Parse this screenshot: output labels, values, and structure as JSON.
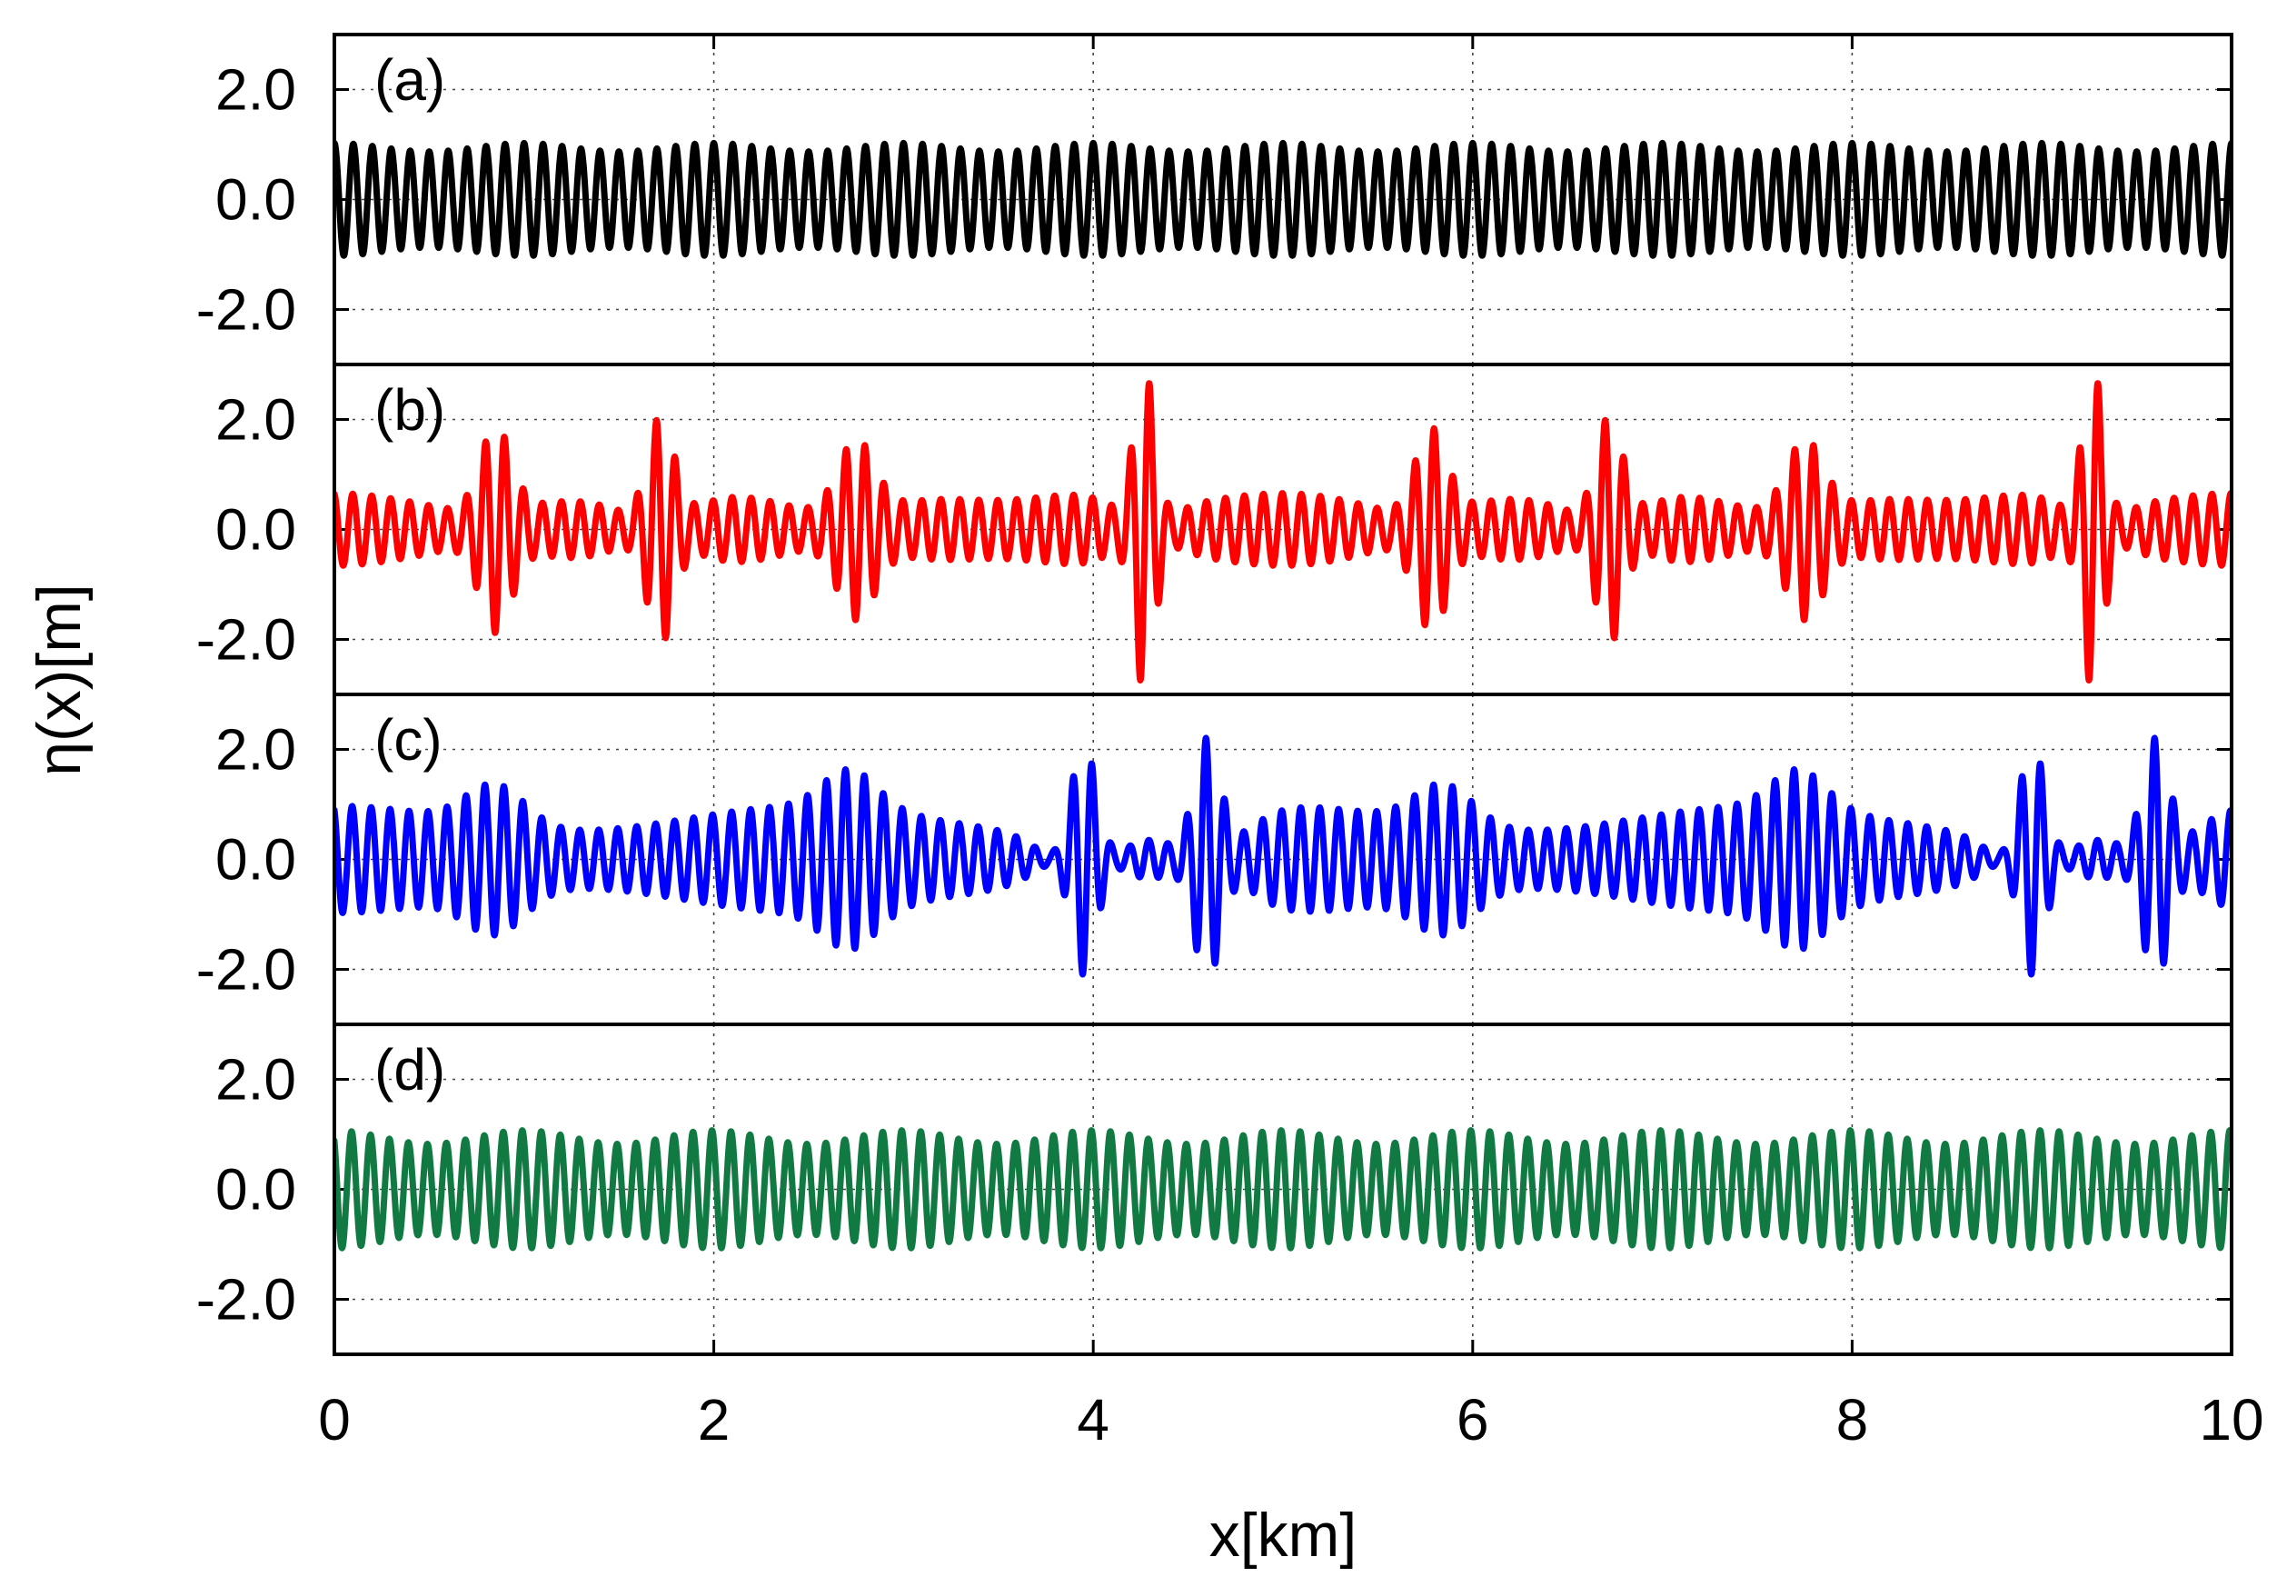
{
  "chart_data": {
    "type": "line",
    "layout": "4 stacked panels sharing x axis",
    "xlabel": "x[km]",
    "ylabel": "η(x)[m]",
    "xlim": [
      0,
      10
    ],
    "xticks": [
      0,
      2,
      4,
      6,
      8,
      10
    ],
    "xtick_labels": [
      "0",
      "2",
      "4",
      "6",
      "8",
      "10"
    ],
    "ylim": [
      -3,
      3
    ],
    "yticks": [
      2,
      0,
      -2
    ],
    "ytick_labels": [
      "2.0",
      "0.0",
      "-2.0"
    ],
    "grid": true,
    "wavenumber_cycles_per_km": 10,
    "panels": [
      {
        "label": "(a)",
        "color": "#000000",
        "description": "uniform wave train",
        "base_amplitude": 0.95,
        "modulation": {
          "amplitude": 0.08,
          "period_km": 1.0
        },
        "groups": []
      },
      {
        "label": "(b)",
        "color": "#ff0000",
        "description": "wave train with localized breather-like peaks",
        "base_amplitude": 0.6,
        "modulation": {
          "amplitude": 0.1,
          "period_km": 1.0
        },
        "groups": [
          {
            "center": 0.85,
            "peak": 1.85,
            "width": 0.12,
            "dip": 0.35
          },
          {
            "center": 1.72,
            "peak": 2.1,
            "width": 0.1,
            "dip": 0.4
          },
          {
            "center": 2.75,
            "peak": 1.65,
            "width": 0.14,
            "dip": 0.3
          },
          {
            "center": 4.27,
            "peak": 2.95,
            "width": 0.08,
            "dip": 0.45
          },
          {
            "center": 5.78,
            "peak": 1.85,
            "width": 0.12,
            "dip": 0.35
          },
          {
            "center": 6.72,
            "peak": 2.1,
            "width": 0.1,
            "dip": 0.4
          },
          {
            "center": 7.75,
            "peak": 1.65,
            "width": 0.14,
            "dip": 0.3
          },
          {
            "center": 9.27,
            "peak": 2.95,
            "width": 0.08,
            "dip": 0.45
          }
        ]
      },
      {
        "label": "(c)",
        "color": "#0000ff",
        "description": "modulated wave groups with rogue-wave peaks",
        "base_amplitude": 0.75,
        "modulation": {
          "amplitude": 0.3,
          "period_km": 2.5
        },
        "groups": [
          {
            "center": 0.85,
            "peak": 1.5,
            "width": 0.22,
            "dip": 0.0
          },
          {
            "center": 2.72,
            "peak": 1.45,
            "width": 0.2,
            "dip": 0.0
          },
          {
            "center": 3.95,
            "peak": 2.3,
            "width": 0.1,
            "dip": 0.8
          },
          {
            "center": 4.6,
            "peak": 2.1,
            "width": 0.1,
            "dip": 0.85
          },
          {
            "center": 5.85,
            "peak": 1.5,
            "width": 0.22,
            "dip": 0.0
          },
          {
            "center": 7.72,
            "peak": 1.45,
            "width": 0.2,
            "dip": 0.0
          },
          {
            "center": 8.95,
            "peak": 2.3,
            "width": 0.1,
            "dip": 0.8
          },
          {
            "center": 9.6,
            "peak": 2.1,
            "width": 0.1,
            "dip": 0.85
          }
        ]
      },
      {
        "label": "(d)",
        "color": "#117a43",
        "description": "slowly modulated wave train",
        "base_amplitude": 0.95,
        "modulation": {
          "amplitude": 0.13,
          "period_km": 1.0
        },
        "groups": []
      }
    ]
  }
}
